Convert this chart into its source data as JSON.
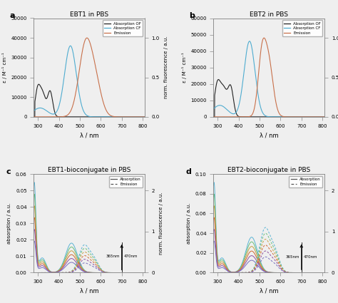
{
  "panel_a": {
    "title": "EBT1 in PBS",
    "label": "a",
    "ylim_left": [
      0,
      50000
    ],
    "ylim_right": [
      0,
      1.25
    ],
    "yticks_left": [
      0,
      10000,
      20000,
      30000,
      40000,
      50000
    ],
    "yticks_right": [
      0,
      0.5,
      1
    ],
    "ylabel_left": "ε / M⁻¹ cm⁻¹",
    "ylabel_right": "norm. fluorescence / a.u.",
    "xlabel": "λ / nm",
    "xlim": [
      280,
      810
    ],
    "xticks": [
      300,
      400,
      500,
      600,
      700,
      800
    ]
  },
  "panel_b": {
    "title": "EBT2 in PBS",
    "label": "b",
    "ylim_left": [
      0,
      60000
    ],
    "ylim_right": [
      0,
      1.25
    ],
    "yticks_left": [
      0,
      10000,
      20000,
      30000,
      40000,
      50000,
      60000
    ],
    "yticks_right": [
      0,
      0.5,
      1
    ],
    "ylabel_left": "ε / M⁻¹ cm⁻¹",
    "ylabel_right": "norm. fluorescence / a.u.",
    "xlabel": "λ / nm",
    "xlim": [
      280,
      810
    ],
    "xticks": [
      300,
      400,
      500,
      600,
      700,
      800
    ]
  },
  "panel_c": {
    "title": "EBT1-bioconjugate in PBS",
    "label": "c",
    "ylim_left": [
      0,
      0.06
    ],
    "ylim_right": [
      0,
      2.4
    ],
    "yticks_left": [
      0,
      0.01,
      0.02,
      0.03,
      0.04,
      0.05,
      0.06
    ],
    "yticks_right": [
      0,
      1,
      2
    ],
    "ylabel_left": "absorption / a.u.",
    "ylabel_right": "norm. fluorescence / a.u.",
    "xlabel": "λ / nm",
    "xlim": [
      280,
      810
    ],
    "xticks": [
      300,
      400,
      500,
      600,
      700,
      800
    ],
    "n_curves": 6
  },
  "panel_d": {
    "title": "EBT2-bioconjugate in PBS",
    "label": "d",
    "ylim_left": [
      0,
      0.1
    ],
    "ylim_right": [
      0,
      2.4
    ],
    "yticks_left": [
      0,
      0.02,
      0.04,
      0.06,
      0.08,
      0.1
    ],
    "yticks_right": [
      0,
      1,
      2
    ],
    "ylabel_left": "absorption / a.u.",
    "ylabel_right": "norm. fluorescence / a.u.",
    "xlabel": "λ / nm",
    "xlim": [
      280,
      810
    ],
    "xticks": [
      300,
      400,
      500,
      600,
      700,
      800
    ],
    "n_curves": 6
  },
  "colors": {
    "absorption_OF": "#222222",
    "absorption_CF": "#4eacd0",
    "emission": "#c8704a",
    "bioconj_colors": [
      "#5ab4d4",
      "#6abf7a",
      "#c8a040",
      "#d06830",
      "#9050a0",
      "#7870c0"
    ]
  },
  "bg_color": "#efefef"
}
